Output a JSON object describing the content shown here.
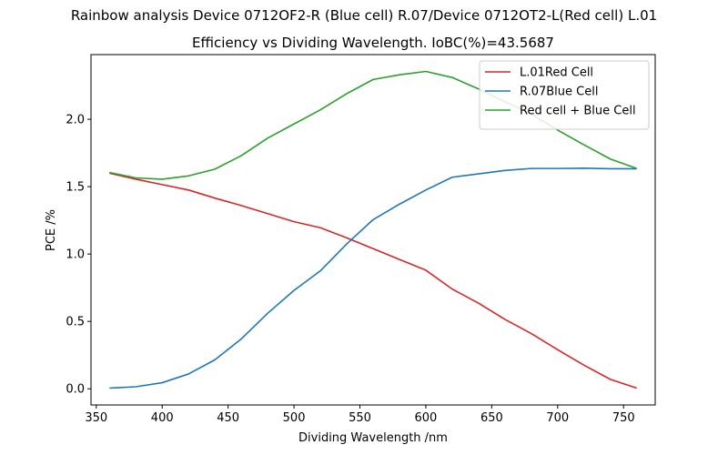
{
  "chart_data": {
    "type": "line",
    "suptitle": "Rainbow analysis Device 0712OF2-R (Blue cell) R.07/Device 0712OT2-L(Red cell) L.01",
    "title": "Efficiency vs Dividing Wavelength. IoBC(%)=43.5687",
    "xlabel": "Dividing Wavelength /nm",
    "ylabel": "PCE /%",
    "xlim": [
      346,
      774
    ],
    "ylim": [
      -0.12,
      2.48
    ],
    "xticks": [
      350,
      400,
      450,
      500,
      550,
      600,
      650,
      700,
      750
    ],
    "yticks": [
      0.0,
      0.5,
      1.0,
      1.5,
      2.0
    ],
    "ytick_labels": [
      "0.0",
      "0.5",
      "1.0",
      "1.5",
      "2.0"
    ],
    "grid": false,
    "legend_position": "top-right",
    "x": [
      360,
      380,
      400,
      420,
      440,
      460,
      480,
      500,
      520,
      540,
      560,
      580,
      600,
      620,
      640,
      660,
      680,
      700,
      720,
      740,
      760
    ],
    "series": [
      {
        "name": "L.01Red Cell",
        "color": "#d62728",
        "values": [
          1.6,
          1.555,
          1.515,
          1.475,
          1.415,
          1.36,
          1.3,
          1.24,
          1.195,
          1.12,
          1.04,
          0.96,
          0.88,
          0.74,
          0.635,
          0.515,
          0.41,
          0.29,
          0.175,
          0.07,
          0.005
        ]
      },
      {
        "name": "R.07Blue Cell",
        "color": "#1f77b4",
        "values": [
          0.005,
          0.015,
          0.045,
          0.11,
          0.215,
          0.37,
          0.56,
          0.73,
          0.875,
          1.075,
          1.255,
          1.37,
          1.475,
          1.57,
          1.595,
          1.62,
          1.635,
          1.635,
          1.637,
          1.633,
          1.633
        ]
      },
      {
        "name": "Red cell + Blue Cell",
        "color": "#2ca02c",
        "values": [
          1.605,
          1.565,
          1.555,
          1.58,
          1.63,
          1.73,
          1.86,
          1.965,
          2.07,
          2.19,
          2.295,
          2.33,
          2.355,
          2.31,
          2.225,
          2.13,
          2.04,
          1.92,
          1.81,
          1.705,
          1.635
        ]
      }
    ]
  }
}
